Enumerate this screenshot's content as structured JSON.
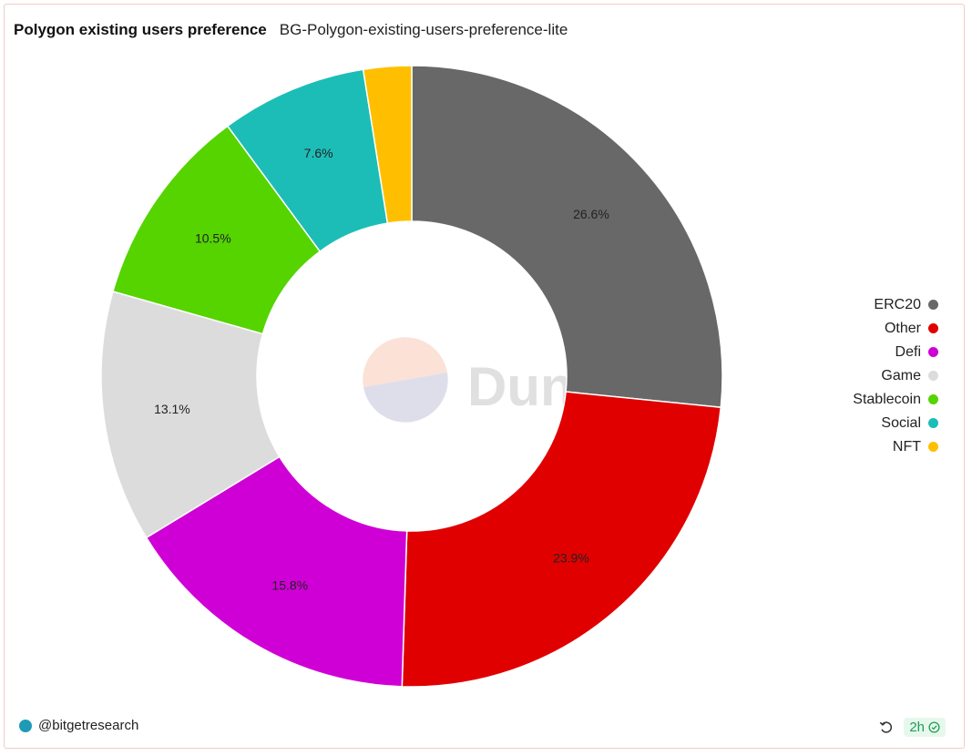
{
  "header": {
    "title": "Polygon existing users preference",
    "subtitle": "BG-Polygon-existing-users-preference-lite"
  },
  "watermark": {
    "text": "Dune"
  },
  "chart_data": {
    "type": "pie",
    "donut": true,
    "legend_position": "right",
    "slices": [
      {
        "label": "ERC20",
        "value": 26.6,
        "display": "26.6%",
        "color": "#686868"
      },
      {
        "label": "Other",
        "value": 23.9,
        "display": "23.9%",
        "color": "#e00000"
      },
      {
        "label": "Defi",
        "value": 15.8,
        "display": "15.8%",
        "color": "#cf00d6"
      },
      {
        "label": "Game",
        "value": 13.1,
        "display": "13.1%",
        "color": "#dcdcdc"
      },
      {
        "label": "Stablecoin",
        "value": 10.5,
        "display": "10.5%",
        "color": "#55d400"
      },
      {
        "label": "Social",
        "value": 7.6,
        "display": "7.6%",
        "color": "#1dbdb7"
      },
      {
        "label": "NFT",
        "value": 2.5,
        "display": "",
        "color": "#ffbf00"
      }
    ]
  },
  "footer": {
    "author": "@bitgetresearch",
    "age": "2h",
    "refresh_icon": "refresh-icon",
    "check_icon": "check-circle-icon"
  }
}
